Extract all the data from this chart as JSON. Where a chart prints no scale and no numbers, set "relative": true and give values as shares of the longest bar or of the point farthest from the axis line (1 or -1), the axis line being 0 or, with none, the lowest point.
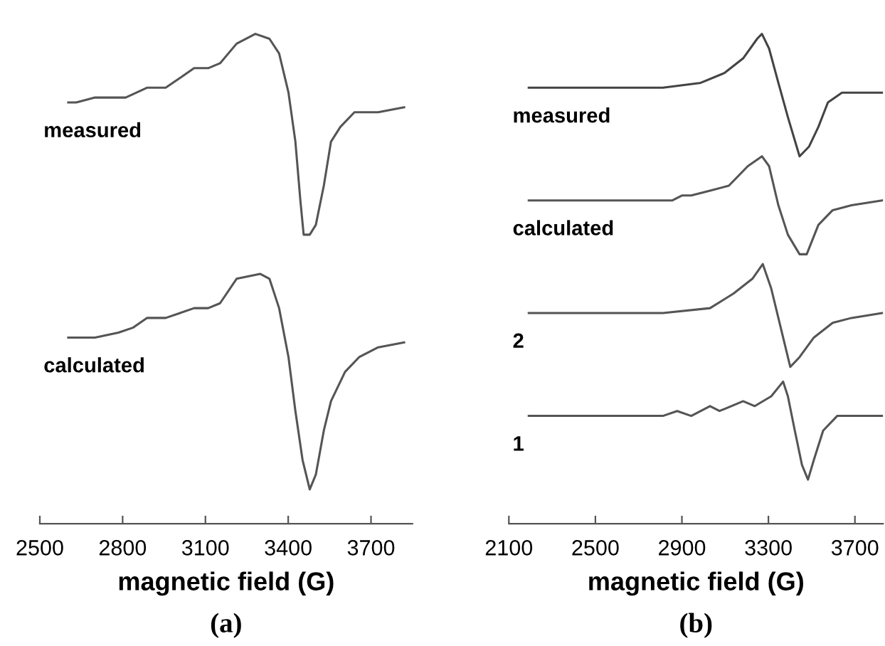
{
  "chart_data": [
    {
      "type": "line",
      "relative": true,
      "xlabel": "magnetic field (G)",
      "xlim": [
        2500,
        3850
      ],
      "xticks": [
        2500,
        2800,
        3100,
        3400,
        3700
      ],
      "grid": false,
      "legend": false,
      "marker": "none",
      "line_style": "solid",
      "tick_labels": "x",
      "annotations": [
        "(a)"
      ],
      "series": [
        {
          "name": "measured",
          "color": "#555555",
          "x": [
            2603,
            2632,
            2700,
            2811,
            2888,
            2956,
            3008,
            3059,
            3110,
            3153,
            3213,
            3281,
            3332,
            3367,
            3401,
            3426,
            3444,
            3456,
            3478,
            3500,
            3529,
            3555,
            3589,
            3640,
            3726,
            3820
          ],
          "values": [
            0.86,
            0.86,
            0.87,
            0.87,
            0.89,
            0.89,
            0.91,
            0.93,
            0.93,
            0.94,
            0.98,
            1.0,
            0.99,
            0.96,
            0.88,
            0.78,
            0.66,
            0.59,
            0.59,
            0.61,
            0.69,
            0.78,
            0.81,
            0.84,
            0.84,
            0.85
          ]
        },
        {
          "name": "calculated",
          "color": "#555555",
          "x": [
            2603,
            2700,
            2785,
            2837,
            2888,
            2956,
            3008,
            3059,
            3110,
            3153,
            3213,
            3298,
            3332,
            3367,
            3401,
            3426,
            3452,
            3478,
            3500,
            3529,
            3555,
            3606,
            3657,
            3726,
            3820
          ],
          "values": [
            0.38,
            0.38,
            0.39,
            0.4,
            0.42,
            0.42,
            0.43,
            0.44,
            0.44,
            0.45,
            0.5,
            0.51,
            0.5,
            0.44,
            0.34,
            0.23,
            0.13,
            0.07,
            0.1,
            0.19,
            0.25,
            0.31,
            0.34,
            0.36,
            0.37
          ]
        }
      ]
    },
    {
      "type": "line",
      "relative": true,
      "xlabel": "magnetic field (G)",
      "xlim": [
        2100,
        3830
      ],
      "xticks": [
        2100,
        2500,
        2900,
        3300,
        3700
      ],
      "grid": false,
      "legend": false,
      "marker": "none",
      "line_style": "solid",
      "tick_labels": "x",
      "annotations": [
        "(b)"
      ],
      "series": [
        {
          "name": "measured",
          "color": "#444444",
          "x": [
            2192,
            2377,
            2595,
            2812,
            2987,
            3096,
            3183,
            3248,
            3270,
            3303,
            3346,
            3390,
            3444,
            3488,
            3531,
            3575,
            3640,
            3826
          ],
          "values": [
            0.89,
            0.89,
            0.89,
            0.89,
            0.9,
            0.92,
            0.95,
            0.99,
            1.0,
            0.97,
            0.9,
            0.83,
            0.75,
            0.77,
            0.81,
            0.86,
            0.88,
            0.88
          ]
        },
        {
          "name": "calculated",
          "color": "#555555",
          "x": [
            2192,
            2595,
            2856,
            2900,
            2943,
            3030,
            3117,
            3205,
            3270,
            3303,
            3346,
            3390,
            3444,
            3477,
            3531,
            3597,
            3684,
            3826
          ],
          "values": [
            0.66,
            0.66,
            0.66,
            0.67,
            0.67,
            0.68,
            0.69,
            0.73,
            0.75,
            0.73,
            0.65,
            0.59,
            0.55,
            0.55,
            0.61,
            0.64,
            0.65,
            0.66
          ]
        },
        {
          "name": "2",
          "color": "#555555",
          "x": [
            2192,
            2812,
            3030,
            3139,
            3226,
            3274,
            3313,
            3357,
            3401,
            3444,
            3510,
            3597,
            3684,
            3826
          ],
          "values": [
            0.43,
            0.43,
            0.44,
            0.47,
            0.5,
            0.53,
            0.48,
            0.4,
            0.32,
            0.34,
            0.38,
            0.41,
            0.42,
            0.43
          ]
        },
        {
          "name": "1",
          "color": "#555555",
          "x": [
            2192,
            2812,
            2878,
            2943,
            3030,
            3074,
            3183,
            3237,
            3313,
            3368,
            3390,
            3422,
            3455,
            3483,
            3510,
            3553,
            3618,
            3826
          ],
          "values": [
            0.22,
            0.22,
            0.23,
            0.22,
            0.24,
            0.23,
            0.25,
            0.24,
            0.26,
            0.29,
            0.26,
            0.19,
            0.12,
            0.09,
            0.13,
            0.19,
            0.22,
            0.22
          ]
        }
      ]
    }
  ]
}
